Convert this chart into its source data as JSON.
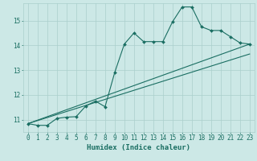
{
  "xlabel": "Humidex (Indice chaleur)",
  "ylabel": "",
  "bg_color": "#cce8e6",
  "grid_color": "#aacfcc",
  "line_color": "#1a6e62",
  "xlim": [
    -0.5,
    23.5
  ],
  "ylim": [
    10.5,
    15.7
  ],
  "yticks": [
    11,
    12,
    13,
    14,
    15
  ],
  "xticks": [
    0,
    1,
    2,
    3,
    4,
    5,
    6,
    7,
    8,
    9,
    10,
    11,
    12,
    13,
    14,
    15,
    16,
    17,
    18,
    19,
    20,
    21,
    22,
    23
  ],
  "series1_x": [
    0,
    1,
    2,
    3,
    4,
    5,
    6,
    7,
    8,
    9,
    10,
    11,
    12,
    13,
    14,
    15,
    16,
    17,
    18,
    19,
    20,
    21,
    22,
    23
  ],
  "series1_y": [
    10.84,
    10.77,
    10.77,
    11.05,
    11.1,
    11.12,
    11.55,
    11.75,
    11.52,
    12.9,
    14.05,
    14.5,
    14.15,
    14.15,
    14.15,
    14.95,
    15.55,
    15.55,
    14.75,
    14.6,
    14.6,
    14.35,
    14.1,
    14.05
  ],
  "series2_x": [
    0,
    23
  ],
  "series2_y": [
    10.84,
    14.05
  ],
  "series3_x": [
    0,
    23
  ],
  "series3_y": [
    10.84,
    13.65
  ],
  "xlabel_fontsize": 6.5,
  "tick_fontsize": 5.5
}
